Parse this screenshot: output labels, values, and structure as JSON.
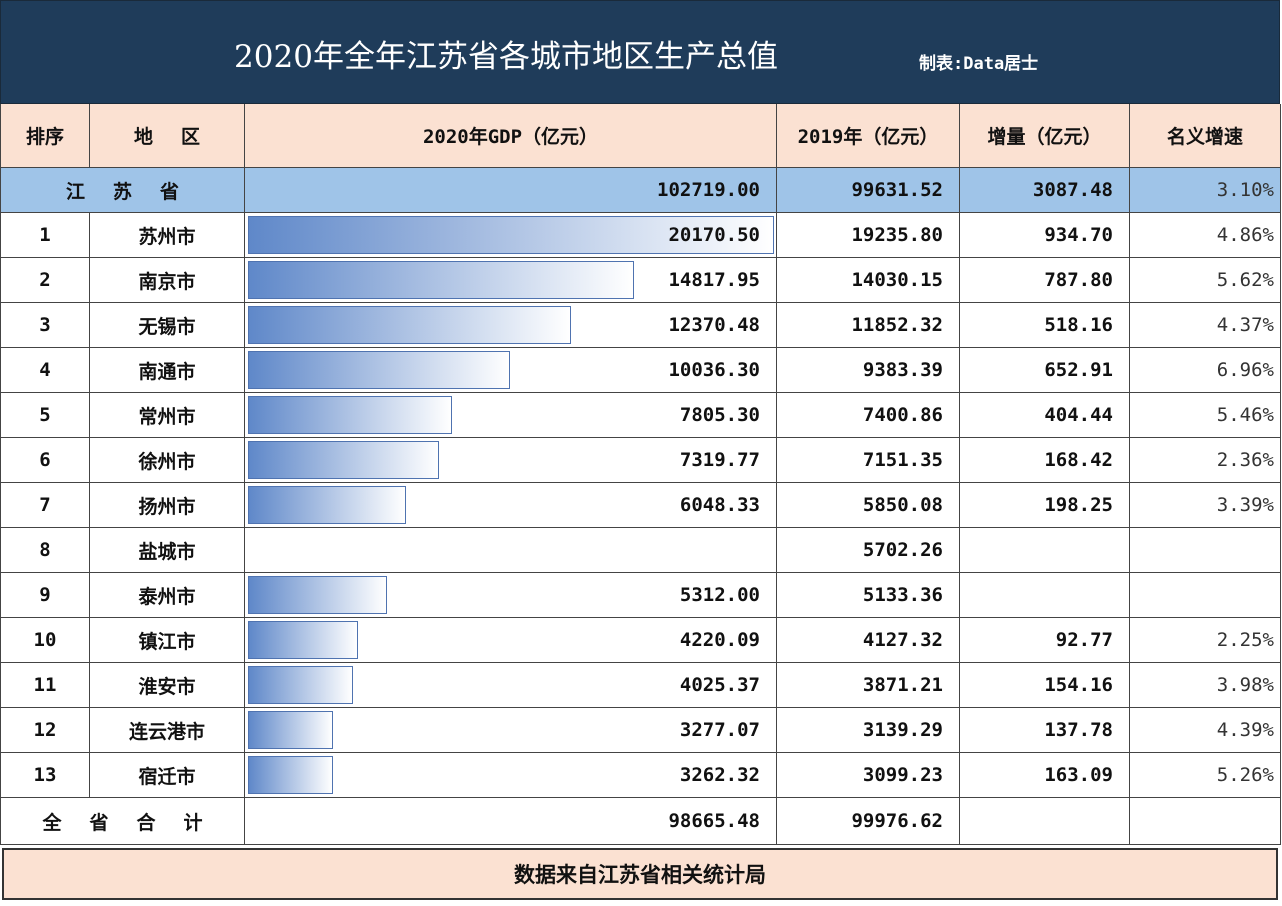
{
  "header": {
    "title": "2020年全年江苏省各城市地区生产总值",
    "credit": "制表:Data居士"
  },
  "table": {
    "columns": [
      "排序",
      "地区",
      "2020年GDP（亿元）",
      "2019年（亿元）",
      "增量（亿元）",
      "名义增速"
    ],
    "province_row": [
      "江苏省",
      "102719.00",
      "99631.52",
      "3087.48",
      "3.10%"
    ],
    "rows": [
      [
        1,
        "苏州市",
        "20170.50",
        "19235.80",
        "934.70",
        "4.86%"
      ],
      [
        2,
        "南京市",
        "14817.95",
        "14030.15",
        "787.80",
        "5.62%"
      ],
      [
        3,
        "无锡市",
        "12370.48",
        "11852.32",
        "518.16",
        "4.37%"
      ],
      [
        4,
        "南通市",
        "10036.30",
        "9383.39",
        "652.91",
        "6.96%"
      ],
      [
        5,
        "常州市",
        "7805.30",
        "7400.86",
        "404.44",
        "5.46%"
      ],
      [
        6,
        "徐州市",
        "7319.77",
        "7151.35",
        "168.42",
        "2.36%"
      ],
      [
        7,
        "扬州市",
        "6048.33",
        "5850.08",
        "198.25",
        "3.39%"
      ],
      [
        8,
        "盐城市",
        null,
        "5702.26",
        null,
        null
      ],
      [
        9,
        "泰州市",
        "5312.00",
        "5133.36",
        null,
        null
      ],
      [
        10,
        "镇江市",
        "4220.09",
        "4127.32",
        "92.77",
        "2.25%"
      ],
      [
        11,
        "淮安市",
        "4025.37",
        "3871.21",
        "154.16",
        "3.98%"
      ],
      [
        12,
        "连云港市",
        "3277.07",
        "3139.29",
        "137.78",
        "4.39%"
      ],
      [
        13,
        "宿迁市",
        "3262.32",
        "3099.23",
        "163.09",
        "5.26%"
      ]
    ],
    "total_row": [
      "全省合计",
      "98665.48",
      "99976.62",
      null,
      null
    ]
  },
  "footer": "数据来自江苏省相关统计局"
}
